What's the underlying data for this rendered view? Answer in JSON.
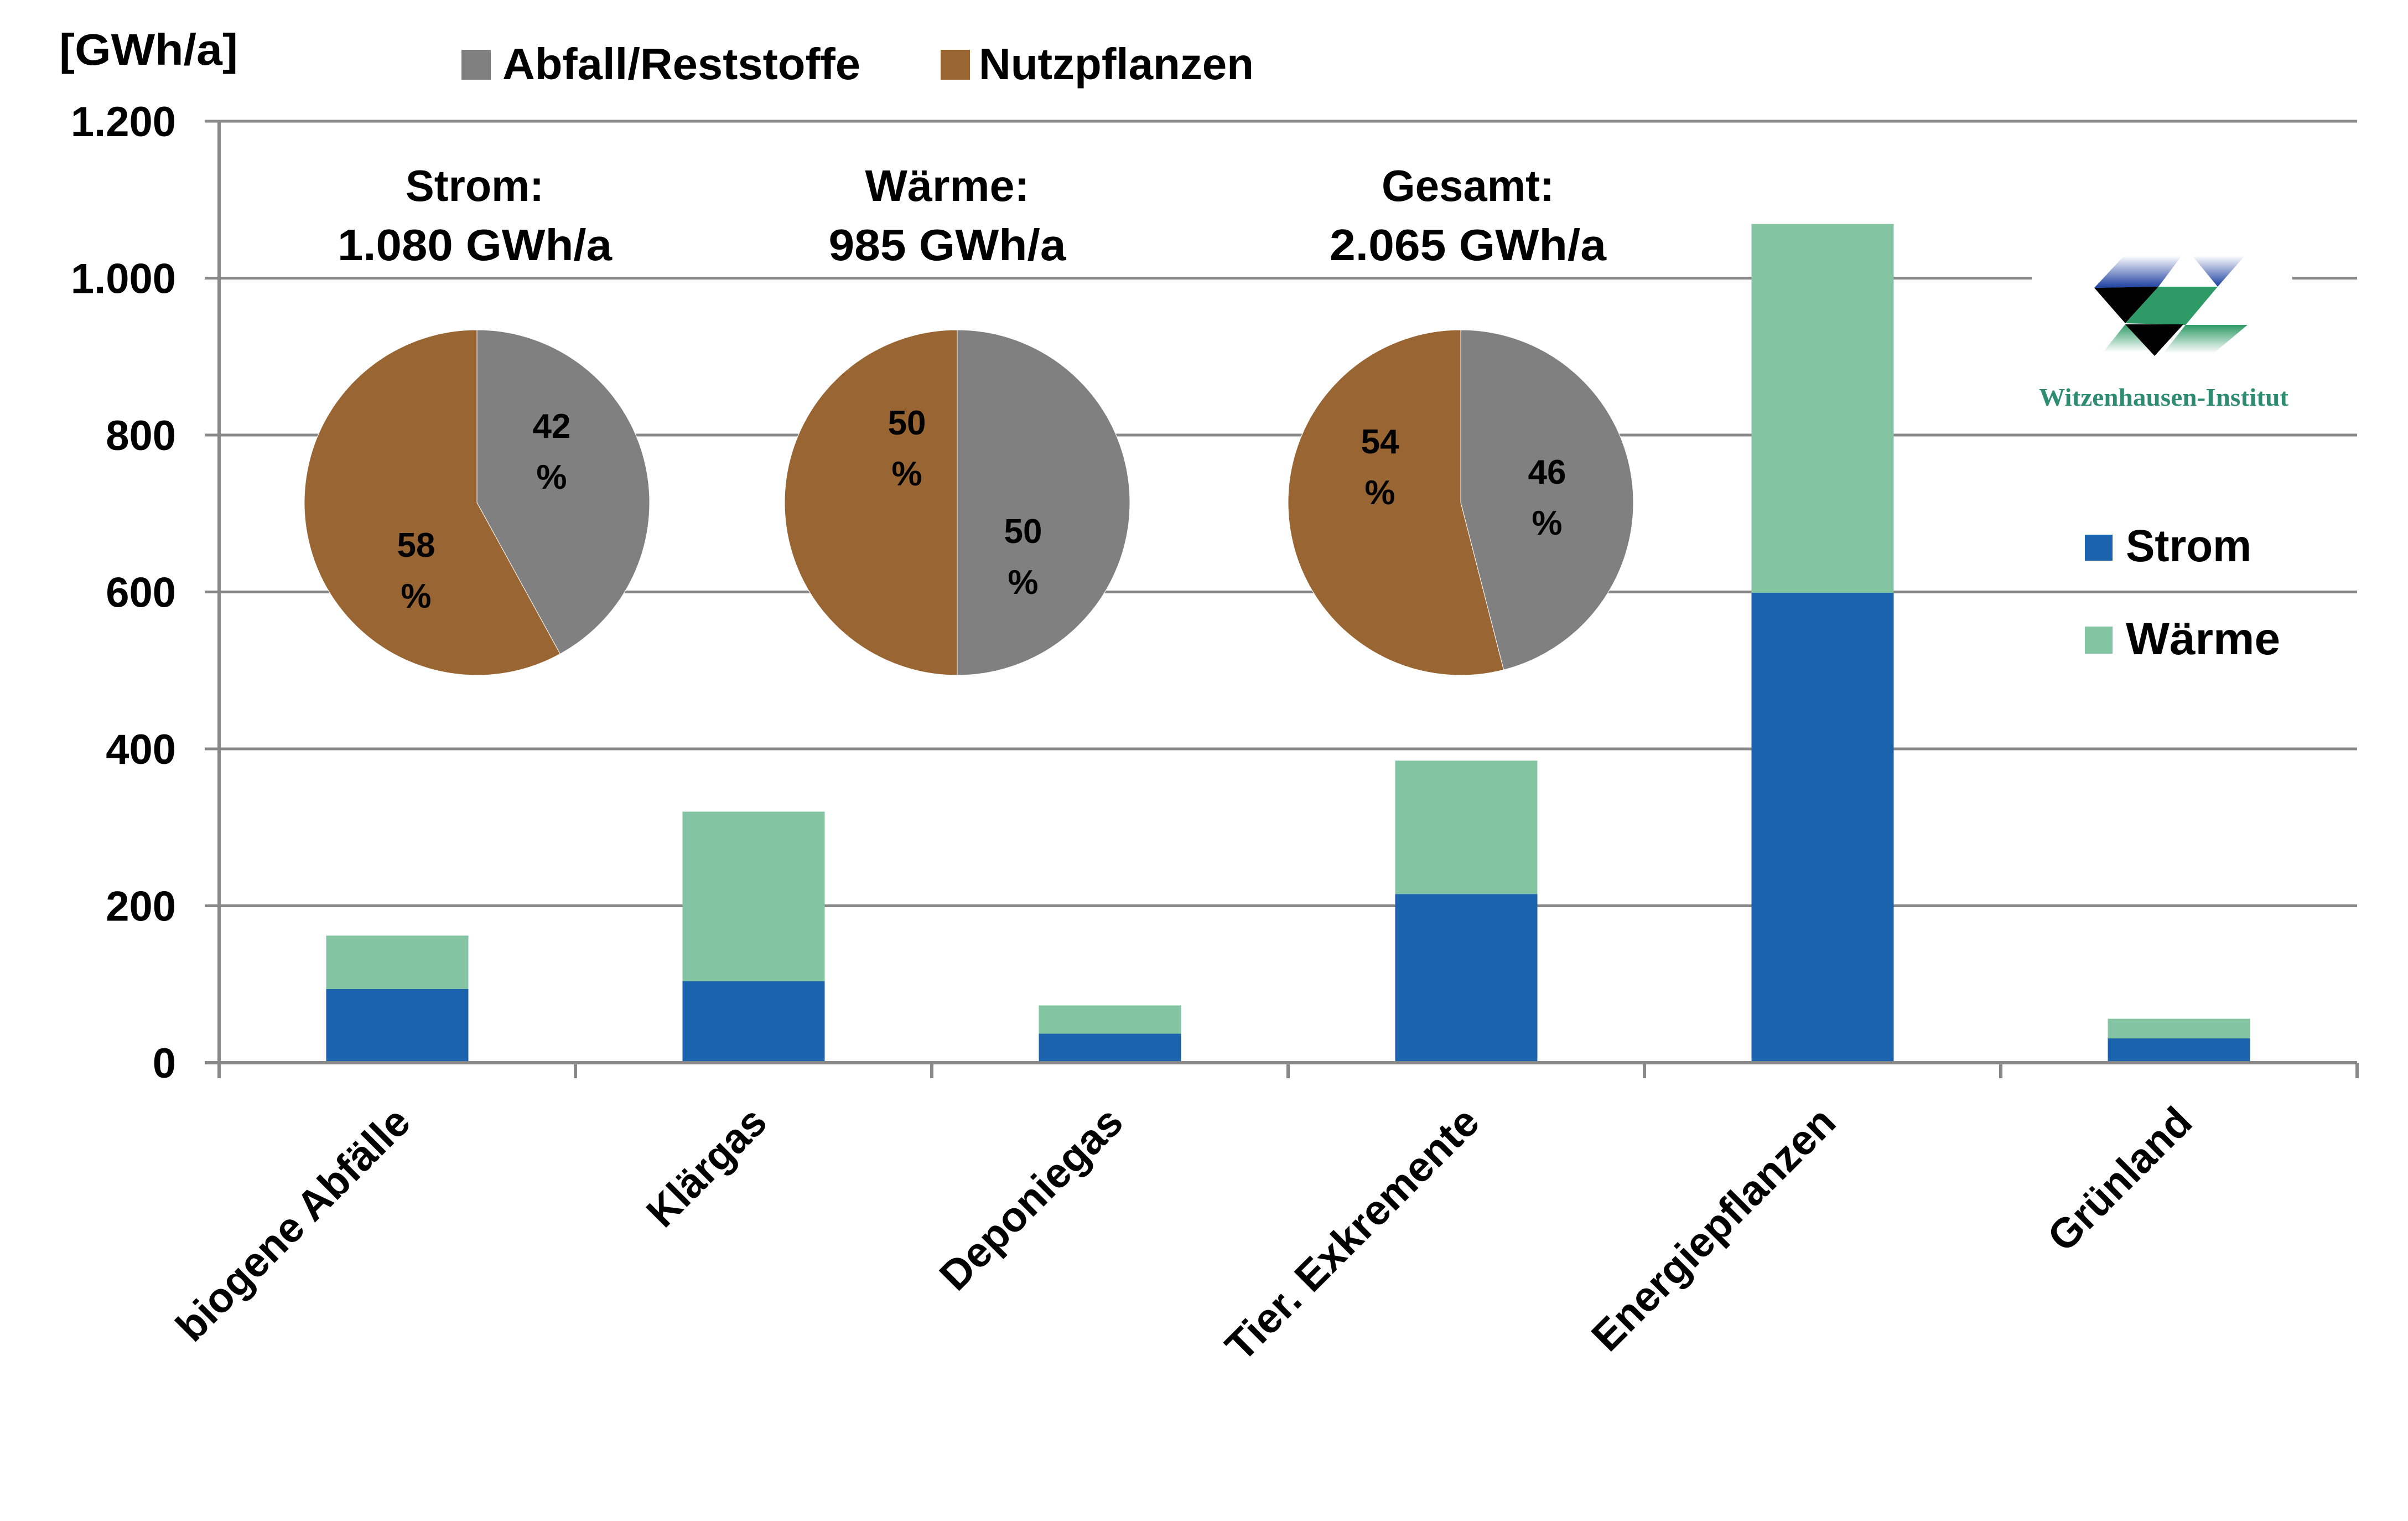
{
  "chart_data": {
    "type": "bar",
    "stacked": true,
    "title": "",
    "xlabel": "",
    "ylabel": "[GWh/a]",
    "ylim": [
      0,
      1200
    ],
    "yticks": [
      0,
      200,
      400,
      600,
      800,
      1000,
      1200
    ],
    "ytick_labels": [
      "0",
      "200",
      "400",
      "600",
      "800",
      "1.000",
      "1.200"
    ],
    "grid": true,
    "legend": "right",
    "categories": [
      "biogene Abfälle",
      "Klärgas",
      "Deponiegas",
      "Tier. Exkremente",
      "Energiepflanzen",
      "Grünland"
    ],
    "series": [
      {
        "name": "Strom",
        "color": "#1b63ad",
        "values": [
          94,
          104,
          37,
          215,
          599,
          31
        ]
      },
      {
        "name": "Wärme",
        "color": "#83c5a2",
        "values": [
          68,
          216,
          36,
          170,
          470,
          25
        ]
      }
    ],
    "pie_legend": [
      {
        "name": "Abfall/Reststoffe",
        "color": "#808080"
      },
      {
        "name": "Nutzpflanzen",
        "color": "#996633"
      }
    ],
    "unit_pct": "%",
    "insets": [
      {
        "type": "pie",
        "title": "Strom:",
        "total": "1.080 GWh/a",
        "slices": [
          {
            "name": "Abfall/Reststoffe",
            "value": 42,
            "label": "42",
            "color": "#808080"
          },
          {
            "name": "Nutzpflanzen",
            "value": 58,
            "label": "58",
            "color": "#996633"
          }
        ]
      },
      {
        "type": "pie",
        "title": "Wärme:",
        "total": "985 GWh/a",
        "slices": [
          {
            "name": "Abfall/Reststoffe",
            "value": 50,
            "label": "50",
            "color": "#808080"
          },
          {
            "name": "Nutzpflanzen",
            "value": 50,
            "label": "50",
            "color": "#996633"
          }
        ]
      },
      {
        "type": "pie",
        "title": "Gesamt:",
        "total": "2.065 GWh/a",
        "slices": [
          {
            "name": "Abfall/Reststoffe",
            "value": 46,
            "label": "46",
            "color": "#808080"
          },
          {
            "name": "Nutzpflanzen",
            "value": 54,
            "label": "54",
            "color": "#996633"
          }
        ]
      }
    ]
  },
  "logo": {
    "text": "Witzenhausen-Institut",
    "colors": {
      "blue": "#1c3fa0",
      "green": "#2e9a66",
      "black": "#000000",
      "text": "#2f8d6f"
    }
  }
}
